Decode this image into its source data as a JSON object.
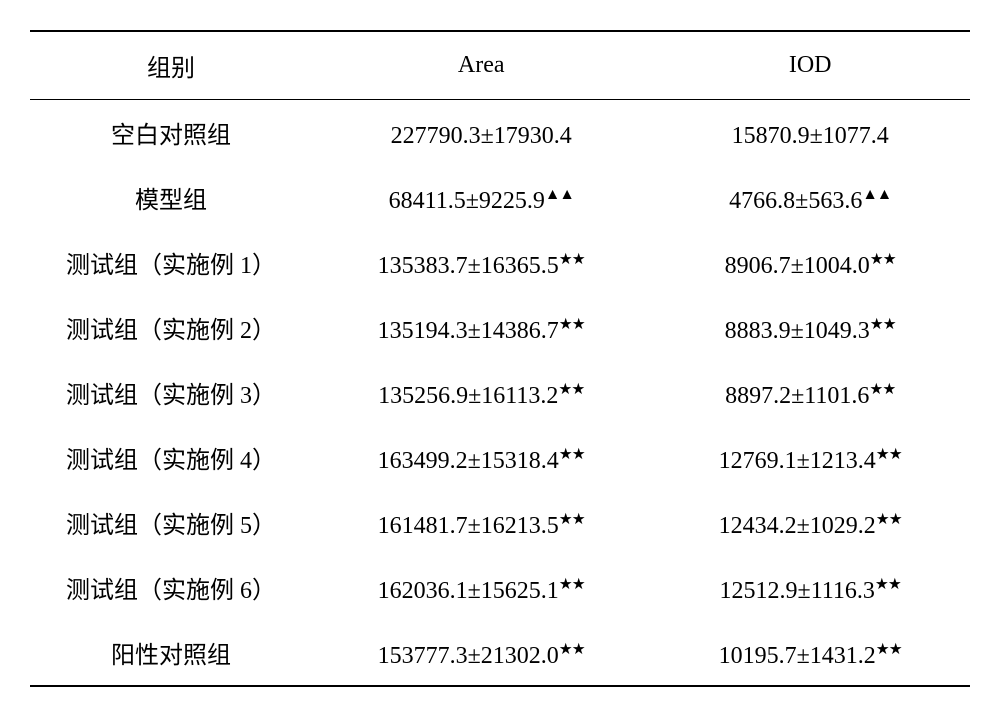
{
  "table": {
    "columns": [
      "组别",
      "Area",
      "IOD"
    ],
    "rows": [
      {
        "label": "空白对照组",
        "area": "227790.3±17930.4",
        "area_mark": "",
        "iod": "15870.9±1077.4",
        "iod_mark": ""
      },
      {
        "label": "模型组",
        "area": "68411.5±9225.9",
        "area_mark": "▲▲",
        "iod": "4766.8±563.6",
        "iod_mark": "▲▲"
      },
      {
        "label": "测试组（实施例 1）",
        "area": "135383.7±16365.5",
        "area_mark": "★★",
        "iod": "8906.7±1004.0",
        "iod_mark": "★★"
      },
      {
        "label": "测试组（实施例 2）",
        "area": "135194.3±14386.7",
        "area_mark": "★★",
        "iod": "8883.9±1049.3",
        "iod_mark": "★★"
      },
      {
        "label": "测试组（实施例 3）",
        "area": "135256.9±16113.2",
        "area_mark": "★★",
        "iod": "8897.2±1101.6",
        "iod_mark": "★★"
      },
      {
        "label": "测试组（实施例 4）",
        "area": "163499.2±15318.4",
        "area_mark": "★★",
        "iod": "12769.1±1213.4",
        "iod_mark": "★★"
      },
      {
        "label": "测试组（实施例 5）",
        "area": "161481.7±16213.5",
        "area_mark": "★★",
        "iod": "12434.2±1029.2",
        "iod_mark": "★★"
      },
      {
        "label": "测试组（实施例 6）",
        "area": "162036.1±15625.1",
        "area_mark": "★★",
        "iod": "12512.9±1116.3",
        "iod_mark": "★★"
      },
      {
        "label": "阳性对照组",
        "area": "153777.3±21302.0",
        "area_mark": "★★",
        "iod": "10195.7±1431.2",
        "iod_mark": "★★"
      }
    ]
  }
}
